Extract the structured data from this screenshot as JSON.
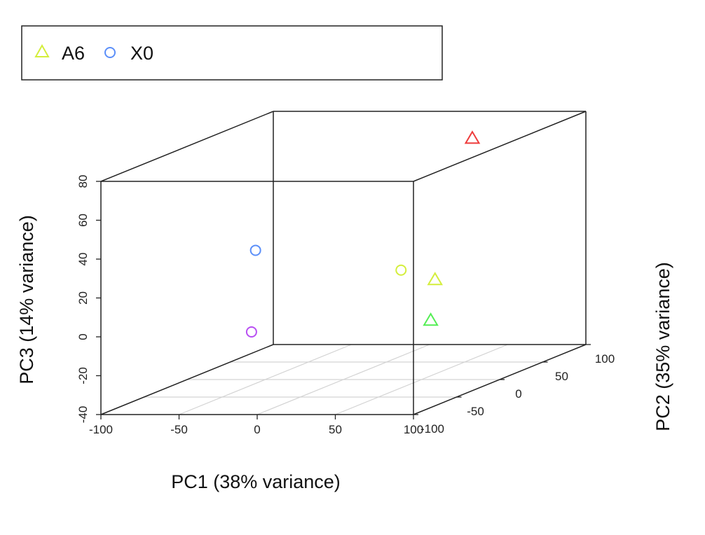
{
  "chart_data": {
    "type": "scatter",
    "title": "",
    "xlabel": "PC1 (38% variance)",
    "ylabel": "PC2 (35% variance)",
    "zlabel": "PC3 (14% variance)",
    "xlim": [
      -100,
      100
    ],
    "ylim": [
      -100,
      100
    ],
    "zlim": [
      -40,
      80
    ],
    "x_ticks": [
      "-100",
      "-50",
      "0",
      "50",
      "100"
    ],
    "y_ticks": [
      "-100",
      "-50",
      "0",
      "50",
      "100"
    ],
    "z_ticks": [
      "-40",
      "-20",
      "0",
      "20",
      "40",
      "60",
      "80"
    ],
    "grid": "bottom-plane",
    "legend_position": "top-left",
    "legend": [
      {
        "label": "A6",
        "marker": "triangle",
        "color": "#d4ee3c"
      },
      {
        "label": "X0",
        "marker": "circle",
        "color": "#5b8ff9"
      }
    ],
    "points": [
      {
        "x": -70,
        "y": 25,
        "z": 22,
        "marker": "circle",
        "color": "#5b8ff9"
      },
      {
        "x": -10,
        "y": 85,
        "z": 1,
        "marker": "circle",
        "color": "#d4ee3c"
      },
      {
        "x": -45,
        "y": -25,
        "z": -11,
        "marker": "circle",
        "color": "#b84ef2"
      },
      {
        "x": 45,
        "y": 68,
        "z": 72,
        "marker": "triangle",
        "color": "#ee3b3b"
      },
      {
        "x": 100,
        "y": -75,
        "z": 25,
        "marker": "triangle",
        "color": "#d4ee3c"
      },
      {
        "x": 100,
        "y": -80,
        "z": 5,
        "marker": "triangle",
        "color": "#54ee54"
      }
    ]
  }
}
